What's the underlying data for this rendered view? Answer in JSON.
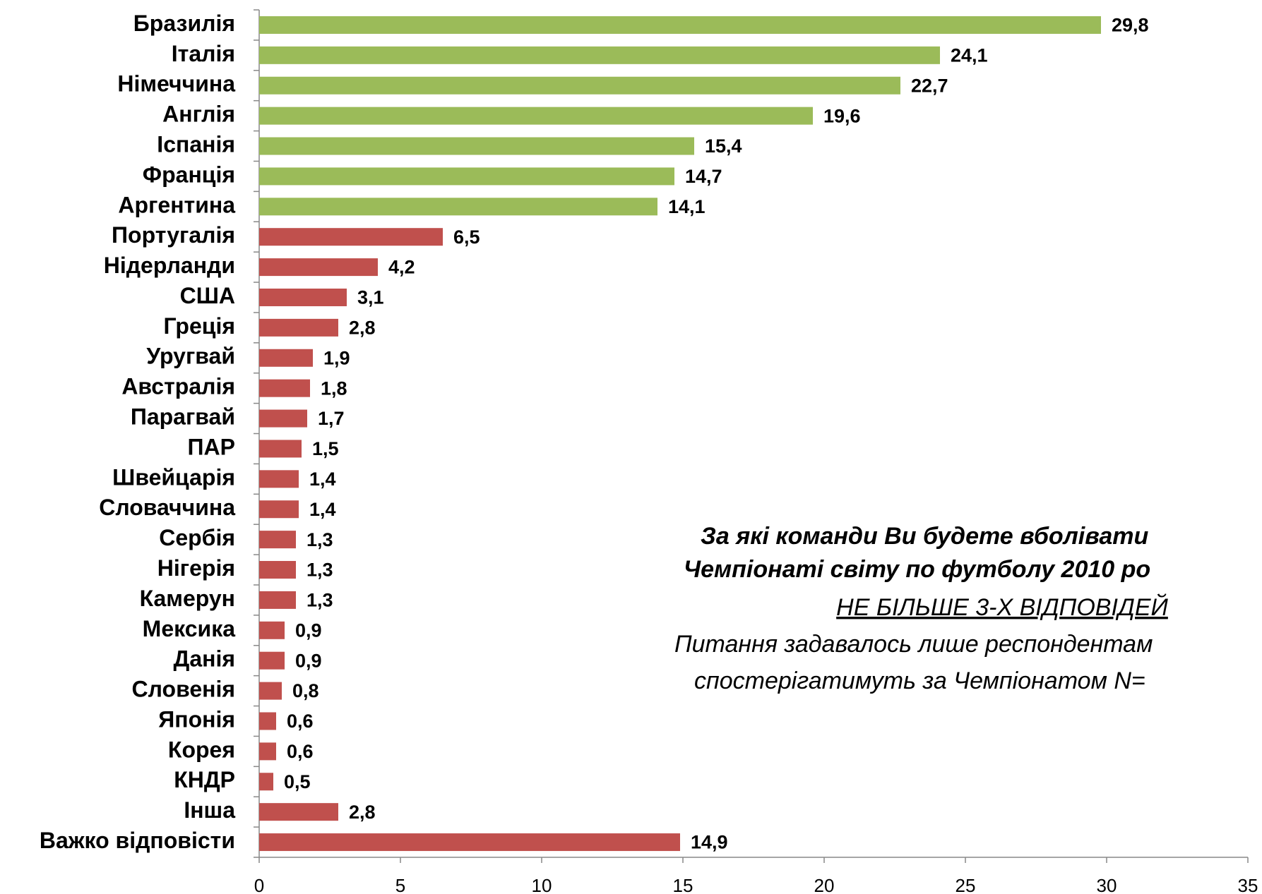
{
  "chart_data": {
    "type": "barh",
    "categories": [
      "Бразилія",
      "Італія",
      "Німеччина",
      "Англія",
      "Іспанія",
      "Франція",
      "Аргентина",
      "Португалія",
      "Нідерланди",
      "США",
      "Греція",
      "Уругвай",
      "Австралія",
      "Парагвай",
      "ПАР",
      "Швейцарія",
      "Словаччина",
      "Сербія",
      "Нігерія",
      "Камерун",
      "Мексика",
      "Данія",
      "Словенія",
      "Японія",
      "Корея",
      "КНДР",
      "Інша",
      "Важко відповісти"
    ],
    "values": [
      29.8,
      24.1,
      22.7,
      19.6,
      15.4,
      14.7,
      14.1,
      6.5,
      4.2,
      3.1,
      2.8,
      1.9,
      1.8,
      1.7,
      1.5,
      1.4,
      1.4,
      1.3,
      1.3,
      1.3,
      0.9,
      0.9,
      0.8,
      0.6,
      0.6,
      0.5,
      2.8,
      14.9
    ],
    "value_labels": [
      "29,8",
      "24,1",
      "22,7",
      "19,6",
      "15,4",
      "14,7",
      "14,1",
      "6,5",
      "4,2",
      "3,1",
      "2,8",
      "1,9",
      "1,8",
      "1,7",
      "1,5",
      "1,4",
      "1,4",
      "1,3",
      "1,3",
      "1,3",
      "0,9",
      "0,9",
      "0,8",
      "0,6",
      "0,6",
      "0,5",
      "2,8",
      "14,9"
    ],
    "colors": [
      "#9bbb59",
      "#9bbb59",
      "#9bbb59",
      "#9bbb59",
      "#9bbb59",
      "#9bbb59",
      "#9bbb59",
      "#c0504d",
      "#c0504d",
      "#c0504d",
      "#c0504d",
      "#c0504d",
      "#c0504d",
      "#c0504d",
      "#c0504d",
      "#c0504d",
      "#c0504d",
      "#c0504d",
      "#c0504d",
      "#c0504d",
      "#c0504d",
      "#c0504d",
      "#c0504d",
      "#c0504d",
      "#c0504d",
      "#c0504d",
      "#c0504d",
      "#c0504d"
    ],
    "xlim": [
      0,
      35
    ],
    "xticks": [
      0,
      5,
      10,
      15,
      20,
      25,
      30,
      35
    ],
    "annotations": [
      "За які команди Ви будете вболівати",
      "Чемпіонаті світу по футболу 2010 ро",
      "НЕ БІЛЬШЕ 3-Х ВІДПОВІДЕЙ",
      "Питання задавалось лише респондентам",
      "спостерігатимуть за Чемпіонатом N="
    ]
  }
}
